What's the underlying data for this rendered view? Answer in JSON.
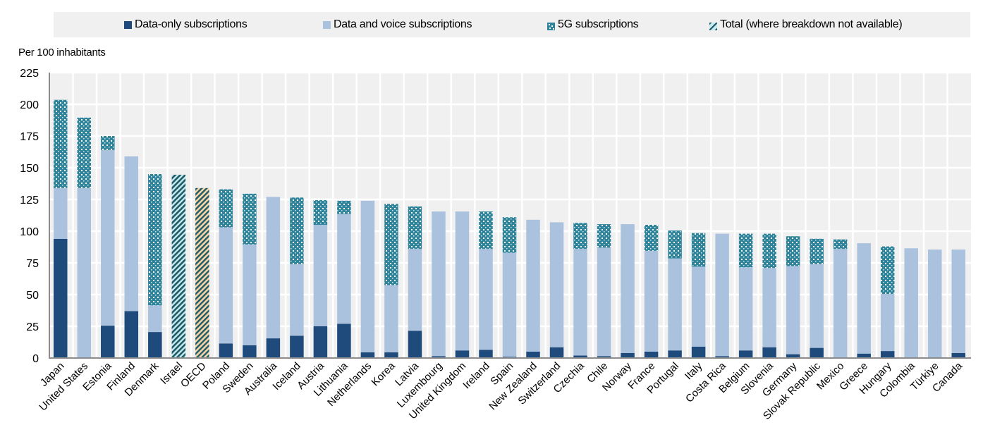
{
  "legend": {
    "items": [
      {
        "key": "data_only",
        "label": "Data-only subscriptions",
        "color": "#1f4a7c",
        "pattern": "solid"
      },
      {
        "key": "data_voice",
        "label": "Data and voice subscriptions",
        "color": "#abc2df",
        "pattern": "solid"
      },
      {
        "key": "g5",
        "label": "5G subscriptions",
        "color": "#2e849b",
        "pattern": "dots"
      },
      {
        "key": "total",
        "label": "Total (where breakdown not available)",
        "color": "#1e5b68",
        "pattern": "diagonal"
      }
    ]
  },
  "colors": {
    "plot_background": "#f0f0f0",
    "gridline": "#ffffff",
    "axis": "#8c8c8c",
    "oecd_hatch_background": "#f7d4a6",
    "total_hatch_background": "#c8ebf0"
  },
  "chart_data": {
    "type": "bar",
    "stacked": true,
    "title": "",
    "xlabel": "",
    "ylabel": "Per 100 inhabitants",
    "ylim": [
      0,
      225
    ],
    "yticks": [
      0,
      25,
      50,
      75,
      100,
      125,
      150,
      175,
      200,
      225
    ],
    "grid": true,
    "legend_position": "top",
    "categories": [
      "Japan",
      "United States",
      "Estonia",
      "Finland",
      "Denmark",
      "Israel",
      "OECD",
      "Poland",
      "Sweden",
      "Australia",
      "Iceland",
      "Austria",
      "Lithuania",
      "Netherlands",
      "Korea",
      "Latvia",
      "Luxembourg",
      "United Kingdom",
      "Ireland",
      "Spain",
      "New Zealand",
      "Switzerland",
      "Czechia",
      "Chile",
      "Norway",
      "France",
      "Portugal",
      "Italy",
      "Costa Rica",
      "Belgium",
      "Slovenia",
      "Germany",
      "Slovak Republic",
      "Mexico",
      "Greece",
      "Hungary",
      "Colombia",
      "Türkiye",
      "Canada"
    ],
    "series": [
      {
        "name": "Data-only subscriptions",
        "key": "data_only",
        "values": [
          94,
          0,
          25.5,
          37,
          20.5,
          0,
          0,
          11.5,
          10,
          15.5,
          17.5,
          25,
          27,
          4.5,
          4.5,
          21.5,
          1.5,
          6,
          6.5,
          1,
          5,
          8.5,
          2,
          1.5,
          4,
          5,
          6,
          9,
          1.5,
          6,
          8.5,
          3,
          8,
          0.5,
          3.5,
          5.5,
          0.5,
          0.5,
          4
        ]
      },
      {
        "name": "Data and voice subscriptions",
        "key": "data_voice",
        "values": [
          40,
          134,
          138.5,
          122,
          21,
          0,
          0,
          91.5,
          79.5,
          111.5,
          56.5,
          80,
          86.5,
          119.5,
          53,
          64.5,
          114,
          109.5,
          79.5,
          82,
          104,
          98.5,
          84,
          85.5,
          101.5,
          79.5,
          72.5,
          63,
          96.5,
          65.5,
          62.5,
          69.5,
          66,
          85.5,
          87,
          45,
          86,
          85,
          81.5
        ]
      },
      {
        "name": "5G subscriptions",
        "key": "g5",
        "values": [
          69.5,
          55.5,
          11,
          0,
          103.5,
          0,
          0,
          30,
          40,
          0,
          52.5,
          19.5,
          10.5,
          0,
          64,
          33.5,
          0,
          0,
          29.5,
          28,
          0,
          0,
          20.5,
          18.5,
          0,
          20.5,
          22,
          26.5,
          0,
          26.5,
          27,
          23.5,
          20,
          7.5,
          0,
          37.5,
          0,
          0,
          0
        ]
      },
      {
        "name": "Total (where breakdown not available)",
        "key": "total",
        "values": [
          0,
          0,
          0,
          0,
          0,
          144.5,
          134,
          0,
          0,
          0,
          0,
          0,
          0,
          0,
          0,
          0,
          0,
          0,
          0,
          0,
          0,
          0,
          0,
          0,
          0,
          0,
          0,
          0,
          0,
          0,
          0,
          0,
          0,
          0,
          0,
          0,
          0,
          0,
          0
        ]
      }
    ],
    "highlight": {
      "OECD": "oecd_hatch"
    }
  }
}
